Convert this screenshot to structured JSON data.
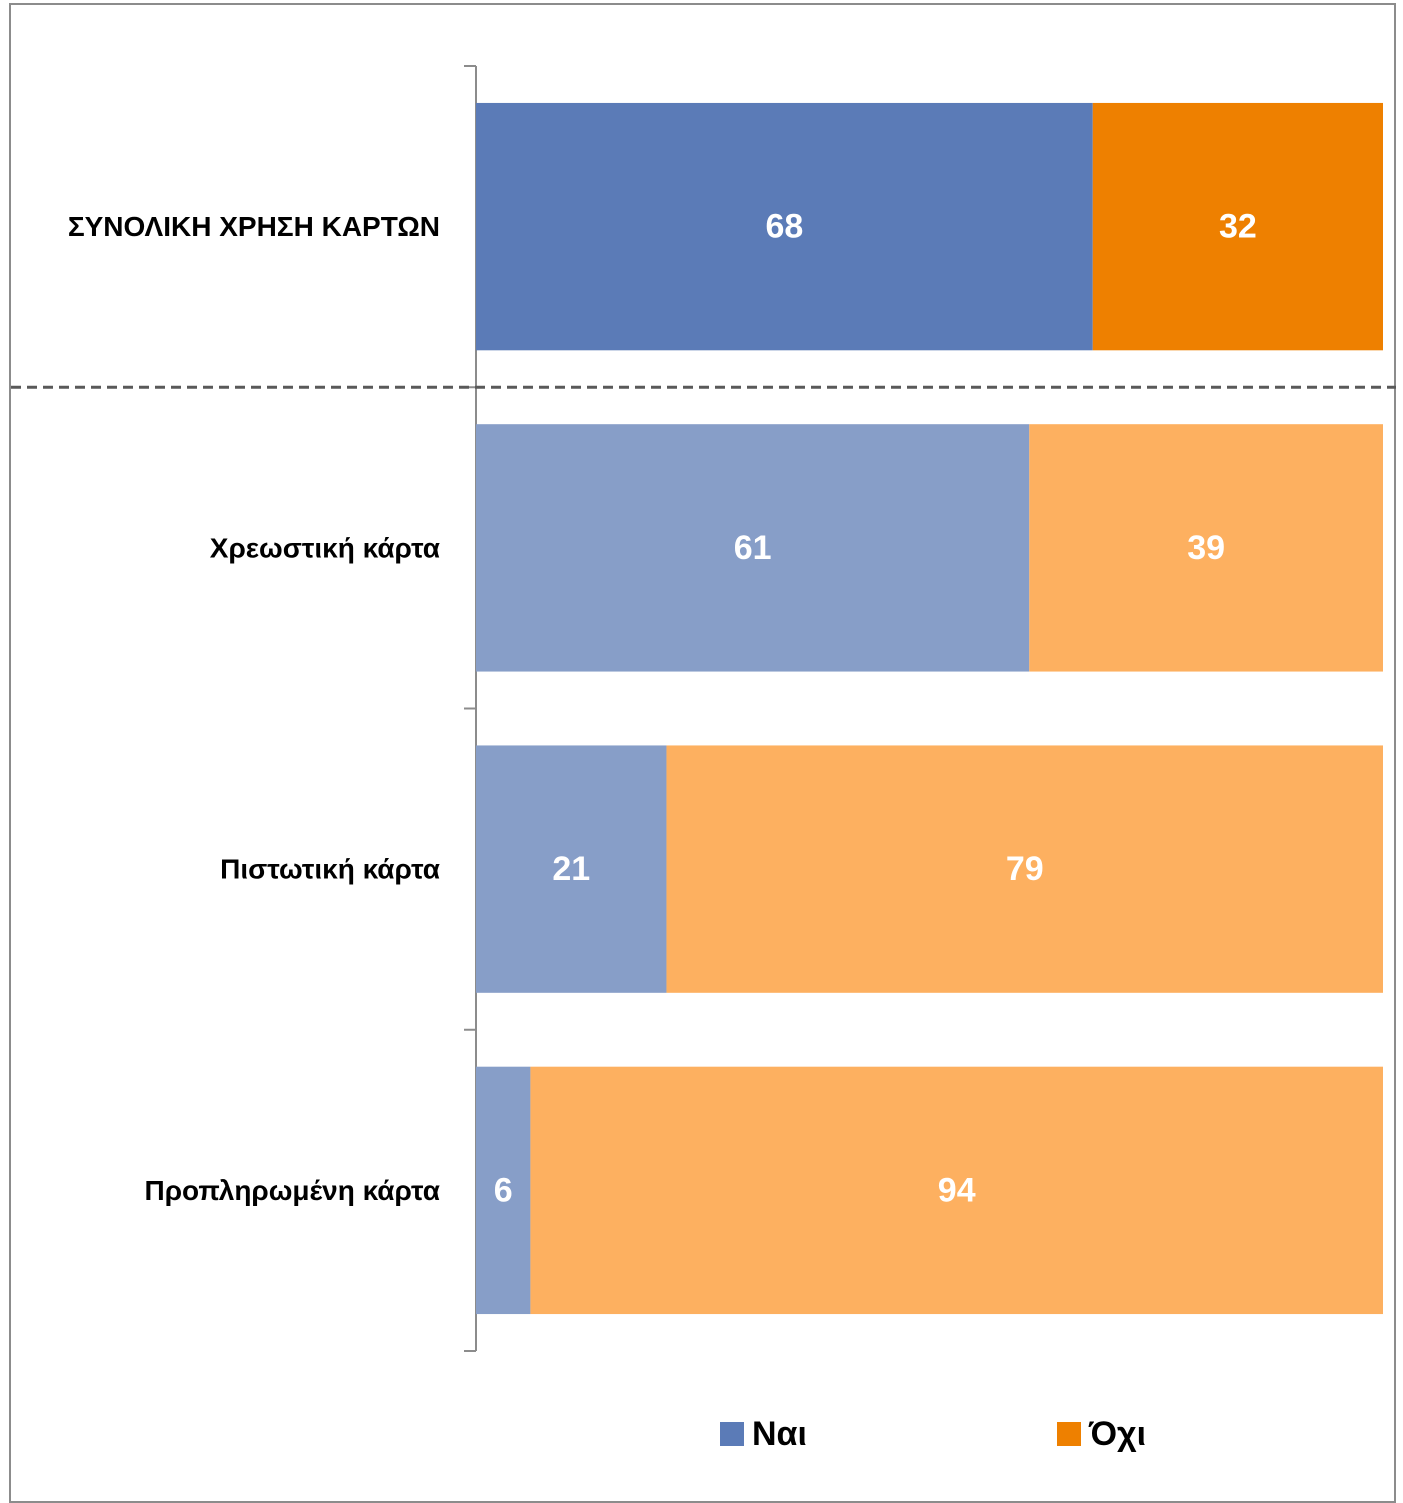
{
  "chart_data": {
    "type": "bar",
    "orientation": "horizontal",
    "stacked": true,
    "categories": [
      "ΣΥΝΟΛΙΚΗ ΧΡΗΣΗ ΚΑΡΤΩΝ",
      "Χρεωστική κάρτα",
      "Πιστωτική κάρτα",
      "Προπληρωμένη κάρτα"
    ],
    "series": [
      {
        "name": "Ναι",
        "values": [
          68,
          61,
          21,
          6
        ],
        "colors": [
          "#5b7bb7",
          "#879ec8",
          "#879ec8",
          "#879ec8"
        ]
      },
      {
        "name": "Όχι",
        "values": [
          32,
          39,
          79,
          94
        ],
        "colors": [
          "#ee8000",
          "#fdb060",
          "#fdb060",
          "#fdb060"
        ]
      }
    ],
    "xlim": [
      0,
      100
    ],
    "grid": false,
    "data_labels": true,
    "separator_after_first_category": true,
    "legend": {
      "position": "bottom",
      "entries": [
        {
          "label": "Ναι",
          "color": "#5b7bb7"
        },
        {
          "label": "Όχι",
          "color": "#ee8000"
        }
      ]
    },
    "title": "",
    "xlabel": "",
    "ylabel": ""
  }
}
